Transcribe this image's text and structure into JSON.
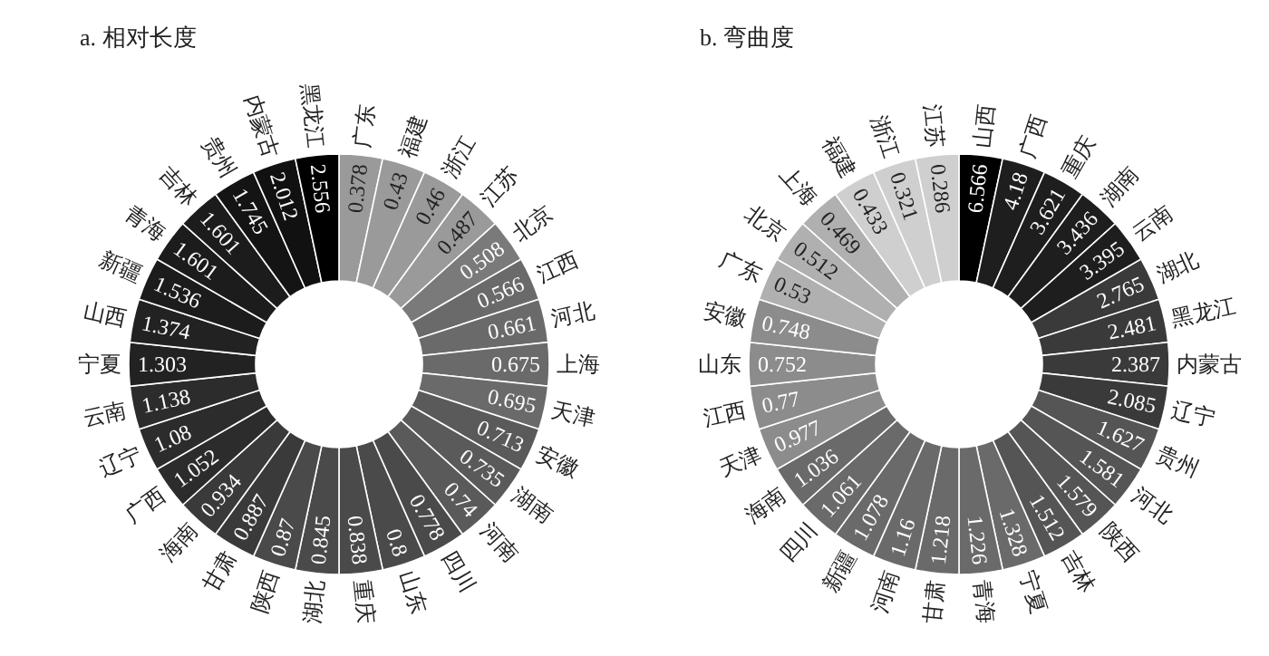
{
  "chart_data": [
    {
      "type": "other",
      "title": "a. 相对长度",
      "data_labels": true,
      "categories": [
        "广东",
        "福建",
        "浙江",
        "江苏",
        "北京",
        "江西",
        "河北",
        "上海",
        "天津",
        "安徽",
        "湖南",
        "河南",
        "四川",
        "山东",
        "重庆",
        "湖北",
        "陕西",
        "甘肃",
        "海南",
        "广西",
        "辽宁",
        "云南",
        "宁夏",
        "山西",
        "新疆",
        "青海",
        "吉林",
        "贵州",
        "内蒙古",
        "黑龙江"
      ],
      "values": [
        0.378,
        0.43,
        0.46,
        0.487,
        0.508,
        0.566,
        0.661,
        0.675,
        0.695,
        0.713,
        0.735,
        0.74,
        0.778,
        0.8,
        0.838,
        0.845,
        0.87,
        0.887,
        0.934,
        1.052,
        1.08,
        1.138,
        1.303,
        1.374,
        1.536,
        1.601,
        1.601,
        1.745,
        2.012,
        2.556
      ],
      "colors": [
        "#9a9a9a",
        "#9a9a9a",
        "#9a9a9a",
        "#9a9a9a",
        "#7a7a7a",
        "#6a6a6a",
        "#6a6a6a",
        "#6a6a6a",
        "#6a6a6a",
        "#5a5a5a",
        "#5a5a5a",
        "#5a5a5a",
        "#4a4a4a",
        "#4a4a4a",
        "#4a4a4a",
        "#4a4a4a",
        "#4a4a4a",
        "#3a3a3a",
        "#3a3a3a",
        "#2c2c2c",
        "#2c2c2c",
        "#2c2c2c",
        "#222222",
        "#222222",
        "#1c1c1c",
        "#1c1c1c",
        "#1c1c1c",
        "#141414",
        "#111111",
        "#000000"
      ]
    },
    {
      "type": "other",
      "title": "b. 弯曲度",
      "data_labels": true,
      "categories": [
        "山西",
        "广西",
        "重庆",
        "湖南",
        "云南",
        "湖北",
        "黑龙江",
        "内蒙古",
        "辽宁",
        "贵州",
        "河北",
        "陕西",
        "吉林",
        "宁夏",
        "青海",
        "甘肃",
        "河南",
        "新疆",
        "四川",
        "海南",
        "天津",
        "江西",
        "山东",
        "安徽",
        "广东",
        "北京",
        "上海",
        "福建",
        "浙江",
        "江苏"
      ],
      "values": [
        6.566,
        4.18,
        3.621,
        3.436,
        3.395,
        2.765,
        2.481,
        2.387,
        2.085,
        1.627,
        1.581,
        1.579,
        1.512,
        1.328,
        1.226,
        1.218,
        1.16,
        1.078,
        1.061,
        1.036,
        0.977,
        0.77,
        0.752,
        0.748,
        0.53,
        0.512,
        0.469,
        0.433,
        0.321,
        0.286
      ],
      "colors": [
        "#000000",
        "#1e1e1e",
        "#1e1e1e",
        "#1e1e1e",
        "#1e1e1e",
        "#3a3a3a",
        "#3a3a3a",
        "#3a3a3a",
        "#3a3a3a",
        "#555555",
        "#555555",
        "#555555",
        "#555555",
        "#6a6a6a",
        "#6a6a6a",
        "#6a6a6a",
        "#6a6a6a",
        "#6a6a6a",
        "#6a6a6a",
        "#6a6a6a",
        "#8c8c8c",
        "#8c8c8c",
        "#8c8c8c",
        "#8c8c8c",
        "#b0b0b0",
        "#b0b0b0",
        "#b0b0b0",
        "#cfcfcf",
        "#cfcfcf",
        "#cfcfcf"
      ]
    }
  ]
}
